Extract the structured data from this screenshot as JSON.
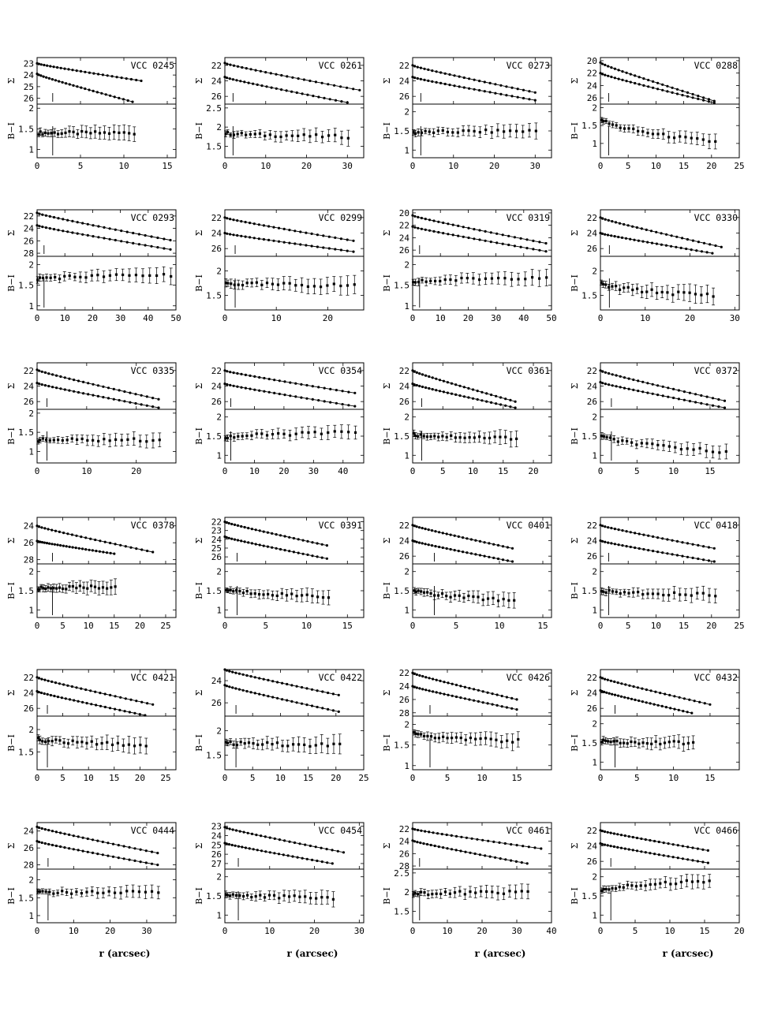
{
  "figure": {
    "ylabel_top": "Σ",
    "ylabel_bottom": "B−I",
    "xlabel": "r (arcsec)"
  },
  "chart_data": [
    {
      "type": "line",
      "title": "VCC 0245",
      "xlim": [
        0,
        16
      ],
      "xticks": [
        0,
        5,
        10,
        15
      ],
      "top_yticks": [
        23,
        24,
        25,
        26
      ],
      "top_ylim": [
        22.5,
        26.5
      ],
      "bot_yticks": [
        1,
        1.5,
        2
      ],
      "bot_ylim": [
        0.8,
        2.1
      ],
      "rmax_B": 12,
      "rmax_I": 11,
      "mu0_B": 23.0,
      "mu1_B": 24.5,
      "mu0_I": 23.9,
      "mu1_I": 26.3,
      "color_start": 1.4,
      "color_end": 1.4,
      "r_core": 1.8
    },
    {
      "type": "line",
      "title": "VCC 0261",
      "xlim": [
        0,
        34
      ],
      "xticks": [
        0,
        10,
        20,
        30
      ],
      "top_yticks": [
        22,
        24,
        26
      ],
      "top_ylim": [
        21,
        27
      ],
      "bot_yticks": [
        1.5,
        2,
        2.5
      ],
      "bot_ylim": [
        1.2,
        2.6
      ],
      "rmax_B": 33,
      "rmax_I": 30,
      "mu0_B": 21.7,
      "mu1_B": 25.2,
      "mu0_I": 23.5,
      "mu1_I": 26.8,
      "color_start": 1.85,
      "color_end": 1.75,
      "r_core": 2.0
    },
    {
      "type": "line",
      "title": "VCC 0273",
      "xlim": [
        0,
        34
      ],
      "xticks": [
        0,
        10,
        20,
        30
      ],
      "top_yticks": [
        22,
        24,
        26
      ],
      "top_ylim": [
        21,
        27
      ],
      "bot_yticks": [
        1,
        1.5,
        2
      ],
      "bot_ylim": [
        0.8,
        2.2
      ],
      "rmax_B": 30,
      "rmax_I": 30,
      "mu0_B": 22.0,
      "mu1_B": 25.5,
      "mu0_I": 23.5,
      "mu1_I": 26.5,
      "color_start": 1.45,
      "color_end": 1.5,
      "r_core": 2.0
    },
    {
      "type": "line",
      "title": "VCC 0288",
      "xlim": [
        0,
        25
      ],
      "xticks": [
        0,
        5,
        10,
        15,
        20,
        25
      ],
      "top_yticks": [
        20,
        22,
        24,
        26
      ],
      "top_ylim": [
        19.5,
        27
      ],
      "bot_yticks": [
        1,
        1.5,
        2
      ],
      "bot_ylim": [
        0.6,
        2.1
      ],
      "rmax_B": 20.5,
      "rmax_I": 20.5,
      "mu0_B": 20.3,
      "mu1_B": 26.5,
      "mu0_I": 22.0,
      "mu1_I": 26.8,
      "color_start": 1.75,
      "color_end": 1.05,
      "r_core": 1.5
    },
    {
      "type": "line",
      "title": "VCC 0293",
      "xlim": [
        0,
        50
      ],
      "xticks": [
        0,
        10,
        20,
        30,
        40,
        50
      ],
      "top_yticks": [
        22,
        24,
        26,
        28
      ],
      "top_ylim": [
        21,
        28.5
      ],
      "bot_yticks": [
        1,
        1.5,
        2
      ],
      "bot_ylim": [
        0.9,
        2.2
      ],
      "rmax_B": 48,
      "rmax_I": 48,
      "mu0_B": 21.5,
      "mu1_B": 25.9,
      "mu0_I": 23.5,
      "mu1_I": 27.4,
      "color_start": 1.65,
      "color_end": 1.75,
      "r_core": 2.5
    },
    {
      "type": "line",
      "title": "VCC 0299",
      "xlim": [
        0,
        27
      ],
      "xticks": [
        0,
        10,
        20
      ],
      "top_yticks": [
        22,
        24,
        26
      ],
      "top_ylim": [
        21,
        27
      ],
      "bot_yticks": [
        1.5,
        2
      ],
      "bot_ylim": [
        1.2,
        2.3
      ],
      "rmax_B": 25,
      "rmax_I": 25,
      "mu0_B": 22.0,
      "mu1_B": 25.0,
      "mu0_I": 24.0,
      "mu1_I": 26.4,
      "color_start": 1.75,
      "color_end": 1.7,
      "r_core": 2.0
    },
    {
      "type": "line",
      "title": "VCC 0319",
      "xlim": [
        0,
        50
      ],
      "xticks": [
        0,
        10,
        20,
        30,
        40,
        50
      ],
      "top_yticks": [
        20,
        22,
        24,
        26
      ],
      "top_ylim": [
        19.5,
        27
      ],
      "bot_yticks": [
        1,
        1.5,
        2
      ],
      "bot_ylim": [
        0.9,
        2.2
      ],
      "rmax_B": 48,
      "rmax_I": 48,
      "mu0_B": 20.4,
      "mu1_B": 24.9,
      "mu0_I": 22.2,
      "mu1_I": 26.2,
      "color_start": 1.55,
      "color_end": 1.7,
      "r_core": 2.5
    },
    {
      "type": "line",
      "title": "VCC 0330",
      "xlim": [
        0,
        31
      ],
      "xticks": [
        0,
        10,
        20,
        30
      ],
      "top_yticks": [
        22,
        24,
        26
      ],
      "top_ylim": [
        21,
        27
      ],
      "bot_yticks": [
        1.5,
        2
      ],
      "bot_ylim": [
        1.2,
        2.3
      ],
      "rmax_B": 27,
      "rmax_I": 25,
      "mu0_B": 22.0,
      "mu1_B": 25.8,
      "mu0_I": 24.0,
      "mu1_I": 26.6,
      "color_start": 1.75,
      "color_end": 1.5,
      "r_core": 2.0
    },
    {
      "type": "line",
      "title": "VCC 0335",
      "xlim": [
        0,
        28
      ],
      "xticks": [
        0,
        10,
        20
      ],
      "top_yticks": [
        22,
        24,
        26
      ],
      "top_ylim": [
        21,
        27
      ],
      "bot_yticks": [
        1,
        1.5,
        2
      ],
      "bot_ylim": [
        0.7,
        2.1
      ],
      "rmax_B": 24.5,
      "rmax_I": 24.5,
      "mu0_B": 21.9,
      "mu1_B": 25.7,
      "mu0_I": 23.6,
      "mu1_I": 26.8,
      "color_start": 1.3,
      "color_end": 1.3,
      "r_core": 2.0
    },
    {
      "type": "line",
      "title": "VCC 0354",
      "xlim": [
        0,
        47
      ],
      "xticks": [
        0,
        10,
        20,
        30,
        40
      ],
      "top_yticks": [
        22,
        24,
        26
      ],
      "top_ylim": [
        21,
        27
      ],
      "bot_yticks": [
        1,
        1.5,
        2
      ],
      "bot_ylim": [
        0.8,
        2.2
      ],
      "rmax_B": 44,
      "rmax_I": 44,
      "mu0_B": 22.0,
      "mu1_B": 24.9,
      "mu0_I": 23.7,
      "mu1_I": 26.6,
      "color_start": 1.45,
      "color_end": 1.6,
      "r_core": 2.0
    },
    {
      "type": "line",
      "title": "VCC 0361",
      "xlim": [
        0,
        23
      ],
      "xticks": [
        0,
        5,
        10,
        15,
        20
      ],
      "top_yticks": [
        22,
        24,
        26
      ],
      "top_ylim": [
        21,
        27
      ],
      "bot_yticks": [
        1,
        1.5,
        2
      ],
      "bot_ylim": [
        0.8,
        2.2
      ],
      "rmax_B": 17,
      "rmax_I": 17,
      "mu0_B": 22.0,
      "mu1_B": 26.0,
      "mu0_I": 23.7,
      "mu1_I": 26.8,
      "color_start": 1.55,
      "color_end": 1.45,
      "r_core": 1.5
    },
    {
      "type": "line",
      "title": "VCC 0372",
      "xlim": [
        0,
        19
      ],
      "xticks": [
        0,
        5,
        10,
        15
      ],
      "top_yticks": [
        22,
        24,
        26
      ],
      "top_ylim": [
        21,
        27
      ],
      "bot_yticks": [
        1,
        1.5,
        2
      ],
      "bot_ylim": [
        0.8,
        2.2
      ],
      "rmax_B": 17,
      "rmax_I": 17,
      "mu0_B": 22.0,
      "mu1_B": 25.9,
      "mu0_I": 23.5,
      "mu1_I": 26.8,
      "color_start": 1.55,
      "color_end": 1.1,
      "r_core": 1.5
    },
    {
      "type": "line",
      "title": "VCC 0378",
      "xlim": [
        0,
        27
      ],
      "xticks": [
        0,
        5,
        10,
        15,
        20,
        25
      ],
      "top_yticks": [
        24,
        26,
        28
      ],
      "top_ylim": [
        23,
        28.5
      ],
      "bot_yticks": [
        1,
        1.5,
        2
      ],
      "bot_ylim": [
        0.8,
        2.2
      ],
      "rmax_B": 22.5,
      "rmax_I": 15,
      "mu0_B": 24.0,
      "mu1_B": 27.1,
      "mu0_I": 25.8,
      "mu1_I": 27.3,
      "color_start": 1.55,
      "color_end": 1.6,
      "r_core": 3.0
    },
    {
      "type": "line",
      "title": "VCC 0391",
      "xlim": [
        0,
        17
      ],
      "xticks": [
        0,
        5,
        10,
        15
      ],
      "top_yticks": [
        22,
        23,
        24,
        25,
        26
      ],
      "top_ylim": [
        21.5,
        26.8
      ],
      "bot_yticks": [
        1,
        1.5,
        2
      ],
      "bot_ylim": [
        0.8,
        2.2
      ],
      "rmax_B": 12.5,
      "rmax_I": 12.5,
      "mu0_B": 22.0,
      "mu1_B": 24.7,
      "mu0_I": 23.7,
      "mu1_I": 26.2,
      "color_start": 1.55,
      "color_end": 1.35,
      "r_core": 1.5
    },
    {
      "type": "line",
      "title": "VCC 0401",
      "xlim": [
        0,
        16
      ],
      "xticks": [
        0,
        5,
        10,
        15
      ],
      "top_yticks": [
        22,
        24,
        26
      ],
      "top_ylim": [
        21,
        27
      ],
      "bot_yticks": [
        1,
        1.5,
        2
      ],
      "bot_ylim": [
        0.8,
        2.2
      ],
      "rmax_B": 11.5,
      "rmax_I": 11.5,
      "mu0_B": 22.0,
      "mu1_B": 25.0,
      "mu0_I": 24.0,
      "mu1_I": 26.7,
      "color_start": 1.55,
      "color_end": 1.25,
      "r_core": 2.5
    },
    {
      "type": "line",
      "title": "VCC 0418",
      "xlim": [
        0,
        25
      ],
      "xticks": [
        0,
        5,
        10,
        15,
        20,
        25
      ],
      "top_yticks": [
        22,
        24,
        26
      ],
      "top_ylim": [
        21,
        27
      ],
      "bot_yticks": [
        1,
        1.5,
        2
      ],
      "bot_ylim": [
        0.8,
        2.2
      ],
      "rmax_B": 20.5,
      "rmax_I": 20.5,
      "mu0_B": 22.0,
      "mu1_B": 25.0,
      "mu0_I": 24.0,
      "mu1_I": 26.7,
      "color_start": 1.5,
      "color_end": 1.4,
      "r_core": 1.5
    },
    {
      "type": "line",
      "title": "VCC 0421",
      "xlim": [
        0,
        27
      ],
      "xticks": [
        0,
        5,
        10,
        15,
        20,
        25
      ],
      "top_yticks": [
        22,
        24,
        26
      ],
      "top_ylim": [
        21,
        27
      ],
      "bot_yticks": [
        1.5,
        2
      ],
      "bot_ylim": [
        1.1,
        2.3
      ],
      "rmax_B": 22.5,
      "rmax_I": 21,
      "mu0_B": 22.0,
      "mu1_B": 25.5,
      "mu0_I": 23.8,
      "mu1_I": 26.9,
      "color_start": 1.8,
      "color_end": 1.65,
      "r_core": 2.0
    },
    {
      "type": "line",
      "title": "VCC 0422",
      "xlim": [
        0,
        25
      ],
      "xticks": [
        0,
        5,
        10,
        15,
        20,
        25
      ],
      "top_yticks": [
        24,
        26
      ],
      "top_ylim": [
        23,
        27.2
      ],
      "bot_yticks": [
        1.5,
        2
      ],
      "bot_ylim": [
        1.2,
        2.3
      ],
      "rmax_B": 20.5,
      "rmax_I": 20.5,
      "mu0_B": 23.0,
      "mu1_B": 25.3,
      "mu0_I": 24.4,
      "mu1_I": 26.8,
      "color_start": 1.75,
      "color_end": 1.7,
      "r_core": 2.0
    },
    {
      "type": "line",
      "title": "VCC 0426",
      "xlim": [
        0,
        20
      ],
      "xticks": [
        0,
        5,
        10,
        15
      ],
      "top_yticks": [
        22,
        24,
        26,
        28
      ],
      "top_ylim": [
        21.5,
        28.5
      ],
      "bot_yticks": [
        1,
        1.5,
        2
      ],
      "bot_ylim": [
        0.9,
        2.2
      ],
      "rmax_B": 15,
      "rmax_I": 15,
      "mu0_B": 22.0,
      "mu1_B": 26.0,
      "mu0_I": 24.0,
      "mu1_I": 27.5,
      "color_start": 1.8,
      "color_end": 1.6,
      "r_core": 2.5
    },
    {
      "type": "line",
      "title": "VCC 0432",
      "xlim": [
        0,
        19
      ],
      "xticks": [
        0,
        5,
        10,
        15
      ],
      "top_yticks": [
        22,
        24,
        26
      ],
      "top_ylim": [
        21,
        27
      ],
      "bot_yticks": [
        1,
        1.5,
        2
      ],
      "bot_ylim": [
        0.8,
        2.2
      ],
      "rmax_B": 15,
      "rmax_I": 12.5,
      "mu0_B": 22.0,
      "mu1_B": 25.5,
      "mu0_I": 23.7,
      "mu1_I": 26.6,
      "color_start": 1.55,
      "color_end": 1.5,
      "r_core": 2.0
    },
    {
      "type": "line",
      "title": "VCC 0444",
      "xlim": [
        0,
        38
      ],
      "xticks": [
        0,
        10,
        20,
        30
      ],
      "top_yticks": [
        24,
        26,
        28
      ],
      "top_ylim": [
        23,
        28.5
      ],
      "bot_yticks": [
        1,
        1.5,
        2
      ],
      "bot_ylim": [
        0.8,
        2.3
      ],
      "rmax_B": 33,
      "rmax_I": 33,
      "mu0_B": 23.5,
      "mu1_B": 26.6,
      "mu0_I": 25.2,
      "mu1_I": 28.0,
      "color_start": 1.65,
      "color_end": 1.65,
      "r_core": 3.0
    },
    {
      "type": "line",
      "title": "VCC 0454",
      "xlim": [
        0,
        31
      ],
      "xticks": [
        0,
        10,
        20,
        30
      ],
      "top_yticks": [
        23,
        24,
        25,
        26,
        27
      ],
      "top_ylim": [
        22.6,
        27.6
      ],
      "bot_yticks": [
        1,
        1.5,
        2
      ],
      "bot_ylim": [
        0.8,
        2.2
      ],
      "rmax_B": 26.5,
      "rmax_I": 24,
      "mu0_B": 23.1,
      "mu1_B": 25.8,
      "mu0_I": 24.8,
      "mu1_I": 27.0,
      "color_start": 1.55,
      "color_end": 1.45,
      "r_core": 3.0
    },
    {
      "type": "line",
      "title": "VCC 0461",
      "xlim": [
        0,
        40
      ],
      "xticks": [
        0,
        10,
        20,
        30,
        40
      ],
      "top_yticks": [
        22,
        24,
        26,
        28
      ],
      "top_ylim": [
        21,
        28.5
      ],
      "bot_yticks": [
        1.5,
        2,
        2.5
      ],
      "bot_ylim": [
        1.2,
        2.6
      ],
      "rmax_B": 37,
      "rmax_I": 33,
      "mu0_B": 22.0,
      "mu1_B": 25.2,
      "mu0_I": 23.9,
      "mu1_I": 27.6,
      "color_start": 1.95,
      "color_end": 2.0,
      "r_core": 2.0
    },
    {
      "type": "line",
      "title": "VCC 0466",
      "xlim": [
        0,
        20
      ],
      "xticks": [
        0,
        5,
        10,
        15,
        20
      ],
      "top_yticks": [
        22,
        24,
        26
      ],
      "top_ylim": [
        21,
        27
      ],
      "bot_yticks": [
        1,
        1.5,
        2
      ],
      "bot_ylim": [
        0.8,
        2.2
      ],
      "rmax_B": 15.5,
      "rmax_I": 15.5,
      "mu0_B": 22.0,
      "mu1_B": 24.6,
      "mu0_I": 23.7,
      "mu1_I": 26.2,
      "color_start": 1.6,
      "color_end": 1.9,
      "r_core": 1.5
    }
  ]
}
